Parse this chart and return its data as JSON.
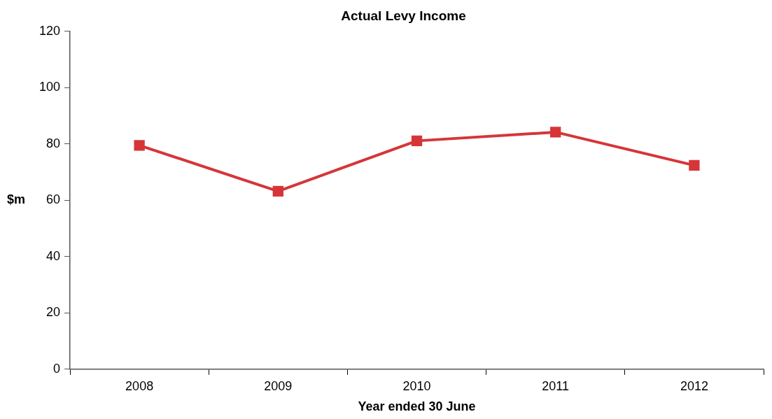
{
  "chart_data": {
    "type": "line",
    "title": "Actual Levy Income",
    "xlabel": "Year ended 30 June",
    "ylabel": "$m",
    "categories": [
      "2008",
      "2009",
      "2010",
      "2011",
      "2012"
    ],
    "series": [
      {
        "color": "#d63538",
        "values": [
          79.5,
          63.2,
          81.1,
          84.2,
          72.4
        ]
      }
    ],
    "ylim": [
      0,
      120
    ],
    "yticks": [
      0,
      20,
      40,
      60,
      80,
      100,
      120
    ],
    "grid": false,
    "legend": false,
    "marker": "square",
    "line_style": "solid"
  }
}
